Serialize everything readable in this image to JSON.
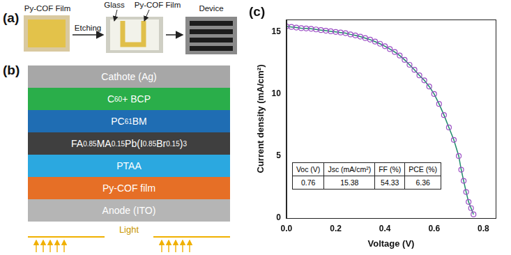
{
  "panel_a": {
    "label": "(a)",
    "film_label": "Py-COF Film",
    "arrow_label": "Etching",
    "glass_label": "Glass",
    "etched_film_label": "Py-COF Film",
    "device_label": "Device"
  },
  "panel_b": {
    "label": "(b)",
    "layers": [
      {
        "text": [
          "Cathote (Ag)"
        ],
        "color": "#a7a7a7"
      },
      {
        "text": [
          "C",
          "60",
          " + BCP"
        ],
        "color": "#2aae4a"
      },
      {
        "text": [
          "PC",
          "61",
          "BM"
        ],
        "color": "#1f6db3"
      },
      {
        "text": [
          "FA",
          "0.85",
          "MA",
          "0.15",
          "Pb(I",
          "0.85",
          "Br",
          "0.15",
          ")",
          "3"
        ],
        "color": "#3f3f3f"
      },
      {
        "text": [
          "PTAA"
        ],
        "color": "#2ba8e0"
      },
      {
        "text": [
          "Py-COF film"
        ],
        "color": "#e66f26"
      },
      {
        "text": [
          "Anode (ITO)"
        ],
        "color": "#b5b5b5"
      }
    ],
    "light_label": "Light"
  },
  "chart_data": {
    "type": "scatter",
    "panel_label": "(c)",
    "x_label": "Voltage (V)",
    "y_label": "Current density (mA/cm²)",
    "x": [
      0.0,
      0.02,
      0.04,
      0.06,
      0.08,
      0.1,
      0.12,
      0.14,
      0.16,
      0.18,
      0.2,
      0.22,
      0.24,
      0.26,
      0.28,
      0.3,
      0.32,
      0.34,
      0.36,
      0.38,
      0.4,
      0.42,
      0.44,
      0.46,
      0.48,
      0.5,
      0.52,
      0.54,
      0.56,
      0.58,
      0.6,
      0.62,
      0.64,
      0.66,
      0.68,
      0.7,
      0.71,
      0.72,
      0.73,
      0.74,
      0.75,
      0.76
    ],
    "series": [
      {
        "type": "scatter",
        "color": "#9b4fc4",
        "marker": "circle",
        "values": [
          15.45,
          15.4,
          15.35,
          15.3,
          15.28,
          15.25,
          15.2,
          15.15,
          15.1,
          15.05,
          15.0,
          14.95,
          14.9,
          14.8,
          14.72,
          14.62,
          14.5,
          14.38,
          14.22,
          14.05,
          13.85,
          13.62,
          13.38,
          13.1,
          12.75,
          12.35,
          11.95,
          11.5,
          11.1,
          10.6,
          10.0,
          9.2,
          8.3,
          7.3,
          6.3,
          5.0,
          3.9,
          3.0,
          2.1,
          1.3,
          0.8,
          0.3
        ]
      },
      {
        "type": "line",
        "color": "#1e8a6a",
        "line_style": "solid",
        "values": [
          15.45,
          15.4,
          15.35,
          15.3,
          15.28,
          15.25,
          15.2,
          15.15,
          15.1,
          15.05,
          15.0,
          14.95,
          14.9,
          14.8,
          14.72,
          14.62,
          14.5,
          14.38,
          14.22,
          14.05,
          13.85,
          13.62,
          13.38,
          13.1,
          12.75,
          12.35,
          11.95,
          11.5,
          11.1,
          10.6,
          10.0,
          9.2,
          8.3,
          7.3,
          6.3,
          5.0,
          3.9,
          3.0,
          2.1,
          1.3,
          0.8,
          0.3
        ]
      }
    ],
    "xlim": [
      0,
      0.85
    ],
    "xticks": [
      {
        "value": 0,
        "label": "0.0"
      },
      {
        "value": 0.2,
        "label": "0.2"
      },
      {
        "value": 0.4,
        "label": "0.4"
      },
      {
        "value": 0.6,
        "label": "0.6"
      },
      {
        "value": 0.8,
        "label": "0.8"
      }
    ],
    "ylim": [
      0,
      16
    ],
    "yticks": [
      0,
      5,
      10,
      15
    ],
    "grid": false,
    "table": {
      "header": [
        "Voc (V)",
        "Jsc (mA/cm²)",
        "FF (%)",
        "PCE (%)"
      ],
      "rows": [
        [
          "0.76",
          "15.38",
          "54.33",
          "6.36"
        ]
      ]
    }
  }
}
